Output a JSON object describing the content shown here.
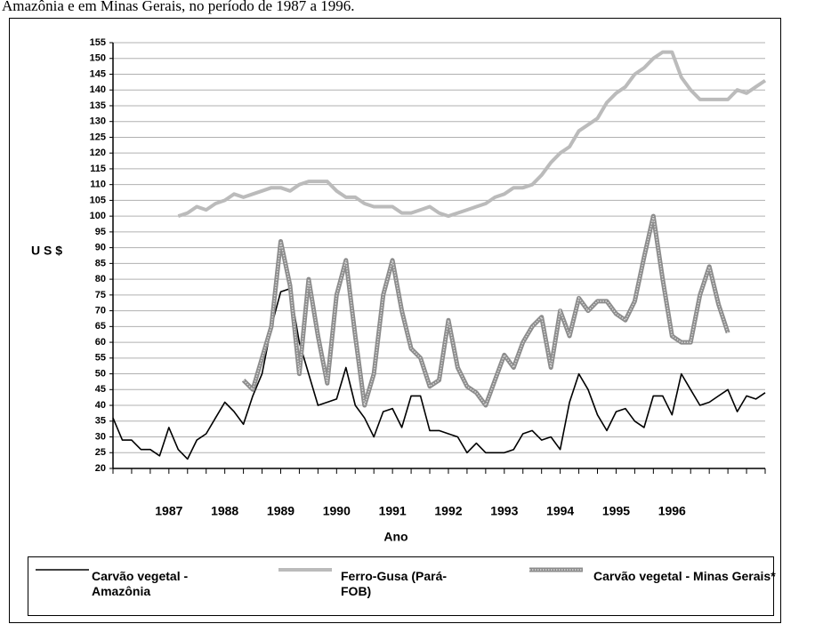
{
  "chart_data": {
    "type": "line",
    "title": "Amazônia e em Minas Gerais, no período de 1987 a 1996.",
    "y_label": "U S $",
    "x_label": "Ano",
    "categories": [
      null,
      null,
      null,
      null,
      null,
      null,
      "1987",
      null,
      null,
      null,
      null,
      null,
      "1988",
      null,
      null,
      null,
      null,
      null,
      "1989",
      null,
      null,
      null,
      null,
      null,
      "1990",
      null,
      null,
      null,
      null,
      null,
      "1991",
      null,
      null,
      null,
      null,
      null,
      "1992",
      null,
      null,
      null,
      null,
      null,
      "1993",
      null,
      null,
      null,
      null,
      null,
      "1994",
      null,
      null,
      null,
      null,
      null,
      "1995",
      null,
      null,
      null,
      null,
      null,
      "1996",
      null,
      null,
      null,
      null,
      null,
      null,
      null,
      null,
      null,
      null
    ],
    "ylim": [
      20,
      155
    ],
    "yticks": [
      20,
      25,
      30,
      35,
      40,
      45,
      50,
      55,
      60,
      65,
      70,
      75,
      80,
      85,
      90,
      95,
      100,
      105,
      110,
      115,
      120,
      125,
      130,
      135,
      140,
      145,
      150,
      155
    ],
    "grid": true,
    "series": [
      {
        "name": "Carvão vegetal - Amazônia",
        "color": "#000000",
        "values": [
          36,
          29,
          29,
          26,
          26,
          24,
          33,
          26,
          23,
          29,
          31,
          36,
          41,
          38,
          34,
          43,
          50,
          65,
          76,
          77,
          60,
          50,
          40,
          41,
          42,
          52,
          40,
          36,
          30,
          38,
          39,
          33,
          43,
          43,
          32,
          32,
          31,
          30,
          25,
          28,
          25,
          25,
          25,
          26,
          31,
          32,
          29,
          30,
          26,
          41,
          50,
          45,
          37,
          32,
          38,
          39,
          35,
          33,
          43,
          43,
          37,
          50,
          45,
          40,
          41,
          43,
          45,
          38,
          43,
          42,
          44
        ]
      },
      {
        "name": "Ferro-Gusa (Pará-FOB)",
        "color": "#bbbbbb",
        "values": [
          null,
          null,
          null,
          null,
          null,
          null,
          null,
          100,
          101,
          103,
          102,
          104,
          105,
          107,
          106,
          107,
          108,
          109,
          109,
          108,
          110,
          111,
          111,
          111,
          108,
          106,
          106,
          104,
          103,
          103,
          103,
          101,
          101,
          102,
          103,
          101,
          100,
          101,
          102,
          103,
          104,
          106,
          107,
          109,
          109,
          110,
          113,
          117,
          120,
          122,
          127,
          129,
          131,
          136,
          139,
          141,
          145,
          147,
          150,
          152,
          152,
          144,
          140,
          137,
          137,
          137,
          137,
          140,
          139,
          141,
          143
        ]
      },
      {
        "name": "Carvão vegetal - Minas Gerais*",
        "color": "#8c8c8c",
        "values": [
          null,
          null,
          null,
          null,
          null,
          null,
          null,
          null,
          null,
          null,
          null,
          null,
          null,
          null,
          48,
          45,
          55,
          65,
          92,
          78,
          50,
          80,
          62,
          47,
          75,
          86,
          62,
          40,
          50,
          75,
          86,
          70,
          58,
          55,
          46,
          48,
          67,
          52,
          46,
          44,
          40,
          48,
          56,
          52,
          60,
          65,
          68,
          52,
          70,
          62,
          74,
          70,
          73,
          73,
          69,
          67,
          73,
          87,
          100,
          80,
          62,
          60,
          60,
          75,
          84,
          72,
          63,
          null,
          null,
          null,
          null
        ]
      }
    ]
  }
}
